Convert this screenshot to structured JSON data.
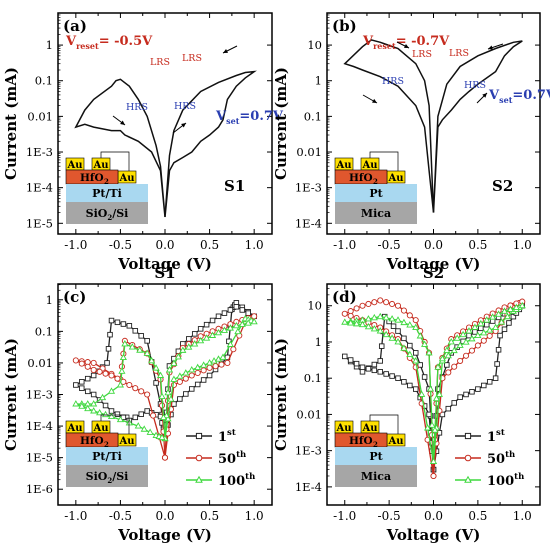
{
  "figure": {
    "ylabel": "Current (mA)",
    "xlabel": "Voltage (V)"
  },
  "panels": [
    {
      "letter": "(a)",
      "sample": "S1",
      "vreset": "V",
      "vreset_sub": "reset",
      "vreset_val": "= -0.5V",
      "vset": "V",
      "vset_sub": "set",
      "vset_val": "=0.7V",
      "lrs_labels": [
        "LRS",
        "LRS"
      ],
      "hrs_labels": [
        "HRS",
        "HRS"
      ],
      "layers": {
        "top": "Au",
        "oxide": "HfO",
        "oxide_sub": "2",
        "bottom_electrode": "Pt/Ti",
        "substrate": "SiO",
        "substrate_sub": "2",
        "substrate_tail": "/Si"
      }
    },
    {
      "letter": "(b)",
      "sample": "S2",
      "vreset": "V",
      "vreset_sub": "reset",
      "vreset_val": "= -0.7V",
      "vset": "V",
      "vset_sub": "set",
      "vset_val": "=0.7V",
      "lrs_labels": [
        "LRS",
        "LRS"
      ],
      "hrs_labels": [
        "HRS",
        "HRS"
      ],
      "layers": {
        "top": "Au",
        "oxide": "HfO",
        "oxide_sub": "2",
        "bottom_electrode": "Pt",
        "substrate": "Mica"
      }
    },
    {
      "letter": "(c)",
      "title": "S1",
      "legend": [
        {
          "label": "1",
          "sup": "st"
        },
        {
          "label": "50",
          "sup": "th"
        },
        {
          "label": "100",
          "sup": "th"
        }
      ],
      "layers": {
        "top": "Au",
        "oxide": "HfO",
        "oxide_sub": "2",
        "bottom_electrode": "Pt/Ti",
        "substrate": "SiO",
        "substrate_sub": "2",
        "substrate_tail": "/Si"
      }
    },
    {
      "letter": "(d)",
      "title": "S2",
      "legend": [
        {
          "label": "1",
          "sup": "st"
        },
        {
          "label": "50",
          "sup": "th"
        },
        {
          "label": "100",
          "sup": "th"
        }
      ],
      "layers": {
        "top": "Au",
        "oxide": "HfO",
        "oxide_sub": "2",
        "bottom_electrode": "Pt",
        "substrate": "Mica"
      }
    }
  ],
  "chart_data": [
    {
      "type": "line",
      "panel": "(a)",
      "xlabel": "Voltage (V)",
      "ylabel": "Current (mA)",
      "xlim": [
        -1.2,
        1.2
      ],
      "ylim_log10": [
        -5.3,
        0.9
      ],
      "x_ticks": [
        "-1.0",
        "-0.5",
        "0.0",
        "0.5",
        "1.0"
      ],
      "y_ticks": [
        "1E-5",
        "1E-4",
        "1E-3",
        "0.01",
        "0.1",
        "1"
      ],
      "series": [
        {
          "x": [
            0.0,
            0.05,
            0.1,
            0.2,
            0.3,
            0.4,
            0.5,
            0.6,
            0.65,
            0.7,
            0.8,
            0.9,
            1.0,
            0.9,
            0.8,
            0.6,
            0.4,
            0.2,
            0.1,
            0.05,
            0.0
          ],
          "y": [
            1.5e-05,
            0.0003,
            0.0005,
            0.0007,
            0.001,
            0.002,
            0.003,
            0.005,
            0.008,
            0.03,
            0.07,
            0.12,
            0.18,
            0.17,
            0.14,
            0.09,
            0.05,
            0.015,
            0.004,
            0.0008,
            1.5e-05
          ]
        },
        {
          "x": [
            0.0,
            -0.05,
            -0.1,
            -0.2,
            -0.3,
            -0.4,
            -0.5,
            -0.55,
            -0.6,
            -0.8,
            -0.9,
            -1.0,
            -0.9,
            -0.8,
            -0.6,
            -0.5,
            -0.45,
            -0.3,
            -0.15,
            -0.05,
            0.0
          ],
          "y": [
            1.5e-05,
            0.0004,
            0.0015,
            0.01,
            0.03,
            0.07,
            0.11,
            0.1,
            0.07,
            0.03,
            0.015,
            0.005,
            0.006,
            0.005,
            0.004,
            0.004,
            0.003,
            0.002,
            0.001,
            0.0003,
            1.5e-05
          ]
        }
      ]
    },
    {
      "type": "line",
      "panel": "(b)",
      "xlabel": "Voltage (V)",
      "ylabel": "Current (mA)",
      "xlim": [
        -1.2,
        1.2
      ],
      "ylim_log10": [
        -4.3,
        1.9
      ],
      "x_ticks": [
        "-1.0",
        "-0.5",
        "0.0",
        "0.5",
        "1.0"
      ],
      "y_ticks": [
        "1E-4",
        "1E-3",
        "0.01",
        "0.1",
        "1",
        "10"
      ],
      "series": [
        {
          "x": [
            0.0,
            0.05,
            0.1,
            0.2,
            0.3,
            0.4,
            0.5,
            0.6,
            0.7,
            0.8,
            0.9,
            1.0,
            0.9,
            0.7,
            0.5,
            0.3,
            0.15,
            0.05,
            0.0
          ],
          "y": [
            0.0002,
            0.05,
            0.08,
            0.15,
            0.3,
            0.5,
            0.8,
            1.2,
            1.8,
            5,
            9,
            13,
            12,
            8,
            5,
            2.5,
            0.8,
            0.1,
            0.0002
          ]
        },
        {
          "x": [
            0.0,
            -0.05,
            -0.1,
            -0.2,
            -0.4,
            -0.6,
            -0.7,
            -0.8,
            -1.0,
            -0.9,
            -0.8,
            -0.6,
            -0.4,
            -0.2,
            -0.1,
            -0.05,
            0.0
          ],
          "y": [
            0.0002,
            0.2,
            1,
            3,
            8,
            12,
            14,
            9,
            3,
            2.5,
            2,
            1.3,
            0.7,
            0.2,
            0.05,
            0.003,
            0.0002
          ]
        }
      ]
    },
    {
      "type": "line",
      "panel": "(c)",
      "title": "S1",
      "xlabel": "Voltage (V)",
      "ylabel": "Current (mA)",
      "xlim": [
        -1.2,
        1.2
      ],
      "ylim_log10": [
        -6.5,
        0.5
      ],
      "x_ticks": [
        "-1.0",
        "-0.5",
        "0.0",
        "0.5",
        "1.0"
      ],
      "y_ticks": [
        "1E-6",
        "1E-5",
        "1E-4",
        "1E-3",
        "0.01",
        "0.1",
        "1"
      ],
      "series": [
        {
          "name": "1st",
          "color": "#222222",
          "marker": "square",
          "x": [
            0.0,
            0.1,
            0.3,
            0.5,
            0.7,
            0.75,
            0.8,
            1.0,
            0.8,
            0.6,
            0.4,
            0.2,
            0.05,
            0.0,
            -0.05,
            -0.2,
            -0.4,
            -0.6,
            -0.65,
            -0.8,
            -1.0,
            -0.8,
            -0.6,
            -0.4,
            -0.2,
            -0.05,
            0.0
          ],
          "y": [
            5e-05,
            0.0005,
            0.0015,
            0.004,
            0.015,
            0.5,
            0.8,
            0.3,
            0.6,
            0.3,
            0.12,
            0.04,
            0.008,
            5e-05,
            0.0005,
            0.05,
            0.15,
            0.22,
            0.01,
            0.004,
            0.002,
            0.001,
            0.0003,
            0.00015,
            0.0003,
            0.0002,
            5e-05
          ]
        },
        {
          "name": "50th",
          "color": "#c62b1e",
          "marker": "circle",
          "x": [
            0.0,
            0.1,
            0.3,
            0.5,
            0.7,
            0.9,
            1.0,
            0.8,
            0.6,
            0.4,
            0.2,
            0.05,
            0.0,
            -0.05,
            -0.2,
            -0.45,
            -0.5,
            -0.8,
            -1.0,
            -0.8,
            -0.6,
            -0.4,
            -0.2,
            0.0
          ],
          "y": [
            1e-05,
            0.002,
            0.004,
            0.007,
            0.01,
            0.2,
            0.3,
            0.2,
            0.12,
            0.07,
            0.03,
            0.005,
            1e-05,
            0.003,
            0.02,
            0.05,
            0.003,
            0.01,
            0.012,
            0.006,
            0.004,
            0.002,
            0.001,
            1e-05
          ]
        },
        {
          "name": "100th",
          "color": "#3ed83e",
          "marker": "triangle",
          "x": [
            0.0,
            0.1,
            0.3,
            0.5,
            0.65,
            0.9,
            1.0,
            0.8,
            0.6,
            0.4,
            0.2,
            0.05,
            0.0,
            -0.05,
            -0.2,
            -0.45,
            -0.5,
            -0.8,
            -1.0,
            -0.8,
            -0.6,
            -0.3,
            -0.1,
            0.0
          ],
          "y": [
            4e-05,
            0.003,
            0.006,
            0.01,
            0.015,
            0.25,
            0.2,
            0.15,
            0.09,
            0.05,
            0.025,
            0.006,
            4e-05,
            0.004,
            0.02,
            0.04,
            0.002,
            0.0005,
            0.0005,
            0.0003,
            0.0002,
            0.0001,
            5e-05,
            4e-05
          ]
        }
      ]
    },
    {
      "type": "line",
      "panel": "(d)",
      "title": "S2",
      "xlabel": "Voltage (V)",
      "ylabel": "Current (mA)",
      "xlim": [
        -1.2,
        1.2
      ],
      "ylim_log10": [
        -4.5,
        1.6
      ],
      "x_ticks": [
        "-1.0",
        "-0.5",
        "0.0",
        "0.5",
        "1.0"
      ],
      "y_ticks": [
        "1E-4",
        "1E-3",
        "0.01",
        "0.1",
        "1",
        "10"
      ],
      "series": [
        {
          "name": "1st",
          "color": "#222222",
          "marker": "square",
          "x": [
            0.0,
            0.1,
            0.3,
            0.5,
            0.7,
            0.75,
            0.9,
            1.0,
            0.8,
            0.6,
            0.4,
            0.2,
            0.05,
            0.0,
            -0.05,
            -0.2,
            -0.4,
            -0.55,
            -0.6,
            -0.8,
            -1.0,
            -0.8,
            -0.6,
            -0.4,
            -0.2,
            -0.05,
            0.0
          ],
          "y": [
            0.0003,
            0.01,
            0.03,
            0.05,
            0.1,
            1.5,
            5,
            10,
            6,
            3,
            1.5,
            0.5,
            0.05,
            0.0003,
            0.05,
            0.5,
            2,
            5,
            0.3,
            0.15,
            0.4,
            0.2,
            0.15,
            0.1,
            0.05,
            0.01,
            0.0003
          ]
        },
        {
          "name": "50th",
          "color": "#c62b1e",
          "marker": "circle",
          "x": [
            0.0,
            0.1,
            0.3,
            0.5,
            0.7,
            0.9,
            1.0,
            0.8,
            0.6,
            0.4,
            0.2,
            0.05,
            0.0,
            -0.05,
            -0.2,
            -0.4,
            -0.6,
            -0.8,
            -1.0,
            -0.8,
            -0.6,
            -0.4,
            -0.2,
            0.0
          ],
          "y": [
            0.0002,
            0.1,
            0.3,
            0.8,
            2,
            10,
            13,
            9,
            5,
            2.5,
            1.2,
            0.2,
            0.0002,
            0.5,
            4,
            10,
            14,
            10,
            6,
            4,
            2.5,
            1.2,
            0.2,
            0.0002
          ]
        },
        {
          "name": "100th",
          "color": "#3ed83e",
          "marker": "triangle",
          "x": [
            0.0,
            0.1,
            0.3,
            0.5,
            0.7,
            0.9,
            1.0,
            0.8,
            0.6,
            0.4,
            0.2,
            0.05,
            0.0,
            -0.05,
            -0.2,
            -0.4,
            -0.6,
            -0.8,
            -1.0,
            -0.8,
            -0.6,
            -0.4,
            -0.2,
            0.0
          ],
          "y": [
            0.0005,
            0.3,
            0.8,
            1.5,
            2.5,
            7,
            10,
            7,
            4,
            2,
            1,
            0.2,
            0.0005,
            0.5,
            2.5,
            4,
            5,
            4,
            3.5,
            3,
            2,
            1,
            0.3,
            0.0005
          ]
        }
      ]
    }
  ]
}
